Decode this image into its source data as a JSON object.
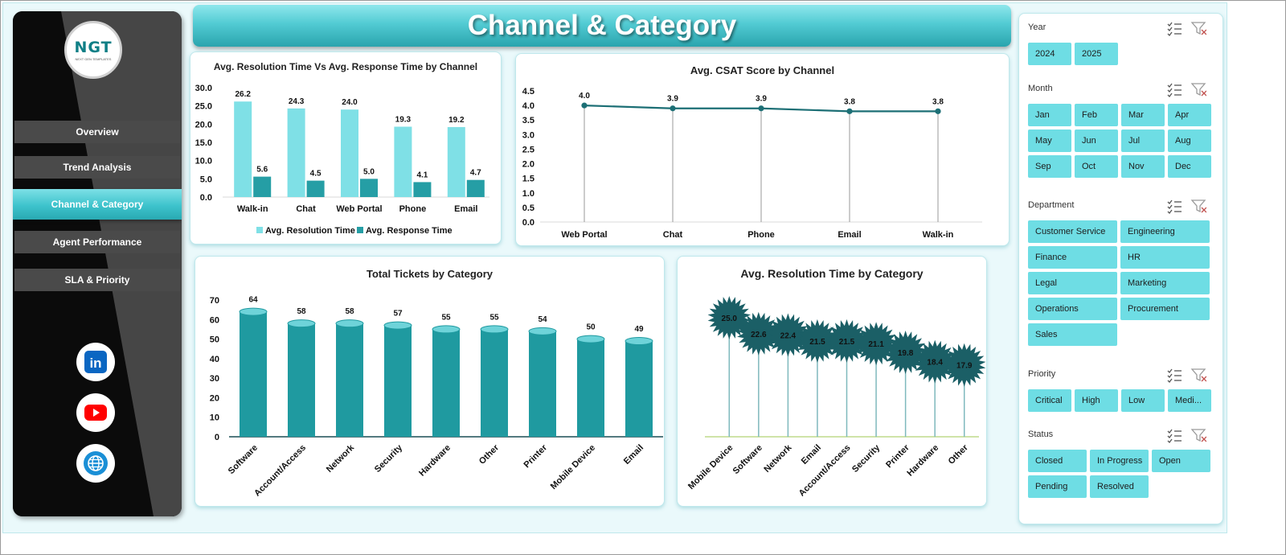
{
  "title": "Channel & Category",
  "logo": {
    "text": "NGT",
    "subtext": "NEXT GEN TEMPLATES"
  },
  "nav": [
    {
      "label": "Overview",
      "active": false
    },
    {
      "label": "Trend Analysis",
      "active": false
    },
    {
      "label": "Channel & Category",
      "active": true
    },
    {
      "label": "Agent Performance",
      "active": false
    },
    {
      "label": "SLA & Priority",
      "active": false
    }
  ],
  "social": [
    {
      "name": "linkedin-icon",
      "text": "in",
      "color": "#0a66c2"
    },
    {
      "name": "youtube-icon",
      "text": "▶",
      "color": "#ff0000"
    },
    {
      "name": "globe-icon",
      "text": "",
      "color": "#1a8fd6"
    }
  ],
  "colors": {
    "accent": "#6edde4",
    "dark_teal": "#1f9aa0",
    "line": "#1c6f75",
    "resolution": "#7fe0e6",
    "response": "#259ea5"
  },
  "chart_data": [
    {
      "id": "resolution-vs-response",
      "type": "bar",
      "title": "Avg. Resolution Time Vs Avg. Response Time by Channel",
      "categories": [
        "Walk-in",
        "Chat",
        "Web Portal",
        "Phone",
        "Email"
      ],
      "series": [
        {
          "name": "Avg. Resolution Time",
          "values": [
            26.2,
            24.3,
            24.0,
            19.3,
            19.2
          ]
        },
        {
          "name": "Avg. Response Time",
          "values": [
            5.6,
            4.5,
            5.0,
            4.1,
            4.7
          ]
        }
      ],
      "yticks": [
        "0.0",
        "5.0",
        "10.0",
        "15.0",
        "20.0",
        "25.0",
        "30.0"
      ],
      "ylim": [
        0,
        30
      ],
      "legend": "bottom"
    },
    {
      "id": "csat-by-channel",
      "type": "line",
      "title": "Avg. CSAT Score by Channel",
      "categories": [
        "Web Portal",
        "Chat",
        "Phone",
        "Email",
        "Walk-in"
      ],
      "values": [
        4.0,
        3.9,
        3.9,
        3.8,
        3.8
      ],
      "yticks": [
        "0.0",
        "0.5",
        "1.0",
        "1.5",
        "2.0",
        "2.5",
        "3.0",
        "3.5",
        "4.0",
        "4.5"
      ],
      "ylim": [
        0,
        4.5
      ]
    },
    {
      "id": "tickets-by-category",
      "type": "bar",
      "title": "Total Tickets by Category",
      "categories": [
        "Software",
        "Account/Access",
        "Network",
        "Security",
        "Hardware",
        "Other",
        "Printer",
        "Mobile Device",
        "Email"
      ],
      "values": [
        64,
        58,
        58,
        57,
        55,
        55,
        54,
        50,
        49
      ],
      "yticks": [
        "0",
        "10",
        "20",
        "30",
        "40",
        "50",
        "60",
        "70"
      ],
      "ylim": [
        0,
        70
      ]
    },
    {
      "id": "resolution-by-category",
      "type": "scatter",
      "title": "Avg. Resolution  Time by Category",
      "categories": [
        "Mobile Device",
        "Software",
        "Network",
        "Email",
        "Account/Access",
        "Security",
        "Printer",
        "Hardware",
        "Other"
      ],
      "values": [
        25.0,
        22.6,
        22.4,
        21.5,
        21.5,
        21.1,
        19.8,
        18.4,
        17.9
      ]
    }
  ],
  "slicers": [
    {
      "title": "Year",
      "cols": 4,
      "items": [
        "2024",
        "2025"
      ]
    },
    {
      "title": "Month",
      "cols": 4,
      "items": [
        "Jan",
        "Feb",
        "Mar",
        "Apr",
        "May",
        "Jun",
        "Jul",
        "Aug",
        "Sep",
        "Oct",
        "Nov",
        "Dec"
      ]
    },
    {
      "title": "Department",
      "cols": 2,
      "items": [
        "Customer Service",
        "Engineering",
        "Finance",
        "HR",
        "Legal",
        "Marketing",
        "Operations",
        "Procurement",
        "Sales"
      ]
    },
    {
      "title": "Priority",
      "cols": 4,
      "items": [
        "Critical",
        "High",
        "Low",
        "Medi..."
      ]
    },
    {
      "title": "Status",
      "cols": 3,
      "items": [
        "Closed",
        "In Progress",
        "Open",
        "Pending",
        "Resolved"
      ]
    }
  ]
}
